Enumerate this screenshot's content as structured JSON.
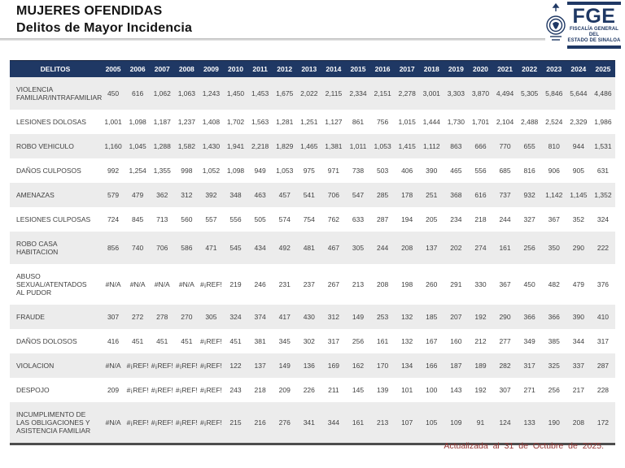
{
  "header": {
    "title_line1": "MUJERES OFENDIDAS",
    "title_line2": "Delitos de Mayor Incidencia",
    "logo": {
      "acronym": "FGE",
      "org_line1": "FISCALÍA GENERAL DEL",
      "org_line2": "ESTADO DE SINALOA"
    }
  },
  "table": {
    "first_column_header": "DELITOS",
    "year_headers": [
      "2005",
      "2006",
      "2007",
      "2008",
      "2009",
      "2010",
      "2011",
      "2012",
      "2013",
      "2014",
      "2015",
      "2016",
      "2017",
      "2018",
      "2019",
      "2020",
      "2021",
      "2022",
      "2023",
      "2024",
      "2025"
    ],
    "rows": [
      {
        "delito": "VIOLENCIA FAMILIAR/INTRAFAMILIAR",
        "values": [
          "450",
          "616",
          "1,062",
          "1,063",
          "1,243",
          "1,450",
          "1,453",
          "1,675",
          "2,022",
          "2,115",
          "2,334",
          "2,151",
          "2,278",
          "3,001",
          "3,303",
          "3,870",
          "4,494",
          "5,305",
          "5,846",
          "5,644",
          "4,486"
        ]
      },
      {
        "delito": "LESIONES DOLOSAS",
        "values": [
          "1,001",
          "1,098",
          "1,187",
          "1,237",
          "1,408",
          "1,702",
          "1,563",
          "1,281",
          "1,251",
          "1,127",
          "861",
          "756",
          "1,015",
          "1,444",
          "1,730",
          "1,701",
          "2,104",
          "2,488",
          "2,524",
          "2,329",
          "1,986"
        ]
      },
      {
        "delito": "ROBO VEHICULO",
        "values": [
          "1,160",
          "1,045",
          "1,288",
          "1,582",
          "1,430",
          "1,941",
          "2,218",
          "1,829",
          "1,465",
          "1,381",
          "1,011",
          "1,053",
          "1,415",
          "1,112",
          "863",
          "666",
          "770",
          "655",
          "810",
          "944",
          "1,531"
        ]
      },
      {
        "delito": "DAÑOS CULPOSOS",
        "values": [
          "992",
          "1,254",
          "1,355",
          "998",
          "1,052",
          "1,098",
          "949",
          "1,053",
          "975",
          "971",
          "738",
          "503",
          "406",
          "390",
          "465",
          "556",
          "685",
          "816",
          "906",
          "905",
          "631"
        ]
      },
      {
        "delito": "AMENAZAS",
        "values": [
          "579",
          "479",
          "362",
          "312",
          "392",
          "348",
          "463",
          "457",
          "541",
          "706",
          "547",
          "285",
          "178",
          "251",
          "368",
          "616",
          "737",
          "932",
          "1,142",
          "1,145",
          "1,352"
        ]
      },
      {
        "delito": "LESIONES CULPOSAS",
        "values": [
          "724",
          "845",
          "713",
          "560",
          "557",
          "556",
          "505",
          "574",
          "754",
          "762",
          "633",
          "287",
          "194",
          "205",
          "234",
          "218",
          "244",
          "327",
          "367",
          "352",
          "324"
        ]
      },
      {
        "delito": "ROBO CASA HABITACION",
        "values": [
          "856",
          "740",
          "706",
          "586",
          "471",
          "545",
          "434",
          "492",
          "481",
          "467",
          "305",
          "244",
          "208",
          "137",
          "202",
          "274",
          "161",
          "256",
          "350",
          "290",
          "222"
        ]
      },
      {
        "delito": "ABUSO SEXUAL/ATENTADOS AL PUDOR",
        "values": [
          "#N/A",
          "#N/A",
          "#N/A",
          "#N/A",
          "#¡REF!",
          "219",
          "246",
          "231",
          "237",
          "267",
          "213",
          "208",
          "198",
          "260",
          "291",
          "330",
          "367",
          "450",
          "482",
          "479",
          "376"
        ]
      },
      {
        "delito": "FRAUDE",
        "values": [
          "307",
          "272",
          "278",
          "270",
          "305",
          "324",
          "374",
          "417",
          "430",
          "312",
          "149",
          "253",
          "132",
          "185",
          "207",
          "192",
          "290",
          "366",
          "366",
          "390",
          "410"
        ]
      },
      {
        "delito": "DAÑOS DOLOSOS",
        "values": [
          "416",
          "451",
          "451",
          "451",
          "#¡REF!",
          "451",
          "381",
          "345",
          "302",
          "317",
          "256",
          "161",
          "132",
          "167",
          "160",
          "212",
          "277",
          "349",
          "385",
          "344",
          "317"
        ]
      },
      {
        "delito": "VIOLACION",
        "values": [
          "#N/A",
          "#¡REF!",
          "#¡REF!",
          "#¡REF!",
          "#¡REF!",
          "122",
          "137",
          "149",
          "136",
          "169",
          "162",
          "170",
          "134",
          "166",
          "187",
          "189",
          "282",
          "317",
          "325",
          "337",
          "287"
        ]
      },
      {
        "delito": "DESPOJO",
        "values": [
          "209",
          "#¡REF!",
          "#¡REF!",
          "#¡REF!",
          "#¡REF!",
          "243",
          "218",
          "209",
          "226",
          "211",
          "145",
          "139",
          "101",
          "100",
          "143",
          "192",
          "307",
          "271",
          "256",
          "217",
          "228"
        ]
      },
      {
        "delito": "INCUMPLIMENTO DE LAS OBLIGACIONES Y ASISTENCIA FAMILIAR",
        "values": [
          "#N/A",
          "#¡REF!",
          "#¡REF!",
          "#¡REF!",
          "#¡REF!",
          "215",
          "216",
          "276",
          "341",
          "344",
          "161",
          "213",
          "107",
          "105",
          "109",
          "91",
          "124",
          "133",
          "190",
          "208",
          "172"
        ]
      }
    ]
  },
  "footer": {
    "updated_text": "Actualizada al 31 de Octubre de 2025."
  },
  "colors": {
    "table_header_bg": "#1F3864",
    "table_header_text": "#FFFFFF",
    "row_alt_bg": "#ECECEC",
    "footer_text": "#963634",
    "logo_navy": "#1F3864"
  }
}
